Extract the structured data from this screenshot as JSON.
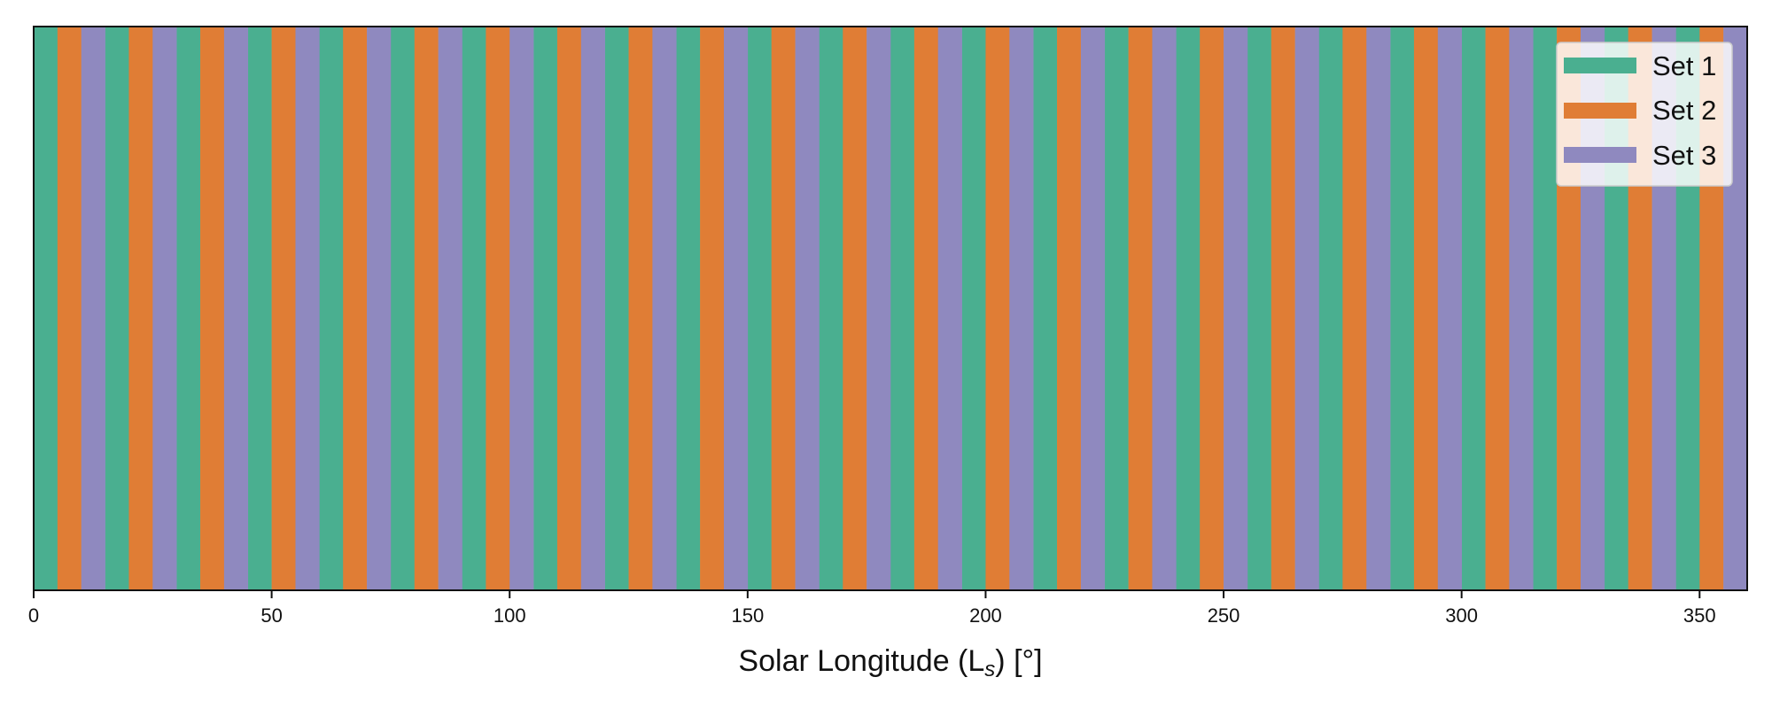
{
  "chart_data": {
    "type": "bar",
    "title": "",
    "xlabel": "Solar Longitude (L",
    "xlabel_subscript": "s",
    "xlabel_suffix": ") [°]",
    "ylabel": "",
    "xlim": [
      0,
      360
    ],
    "x_ticks": [
      0,
      50,
      100,
      150,
      200,
      250,
      300,
      350
    ],
    "bin_width": 5,
    "pattern": "Alternating 5° bins cycling Set 1, Set 2, Set 3 across 0–360°",
    "series": [
      {
        "name": "Set 1",
        "color": "#4aaf90",
        "bins_start_deg": [
          0,
          15,
          30,
          45,
          60,
          75,
          90,
          105,
          120,
          135,
          150,
          165,
          180,
          195,
          210,
          225,
          240,
          255,
          270,
          285,
          300,
          315,
          330,
          345
        ]
      },
      {
        "name": "Set 2",
        "color": "#e07d35",
        "bins_start_deg": [
          5,
          20,
          35,
          50,
          65,
          80,
          95,
          110,
          125,
          140,
          155,
          170,
          185,
          200,
          215,
          230,
          245,
          260,
          275,
          290,
          305,
          320,
          335,
          350
        ]
      },
      {
        "name": "Set 3",
        "color": "#8f89bf",
        "bins_start_deg": [
          10,
          25,
          40,
          55,
          70,
          85,
          100,
          115,
          130,
          145,
          160,
          175,
          190,
          205,
          220,
          235,
          250,
          265,
          280,
          295,
          310,
          325,
          340,
          355
        ]
      }
    ],
    "legend": {
      "placement": "top-right",
      "entries": [
        "Set 1",
        "Set 2",
        "Set 3"
      ]
    },
    "grid": false
  }
}
